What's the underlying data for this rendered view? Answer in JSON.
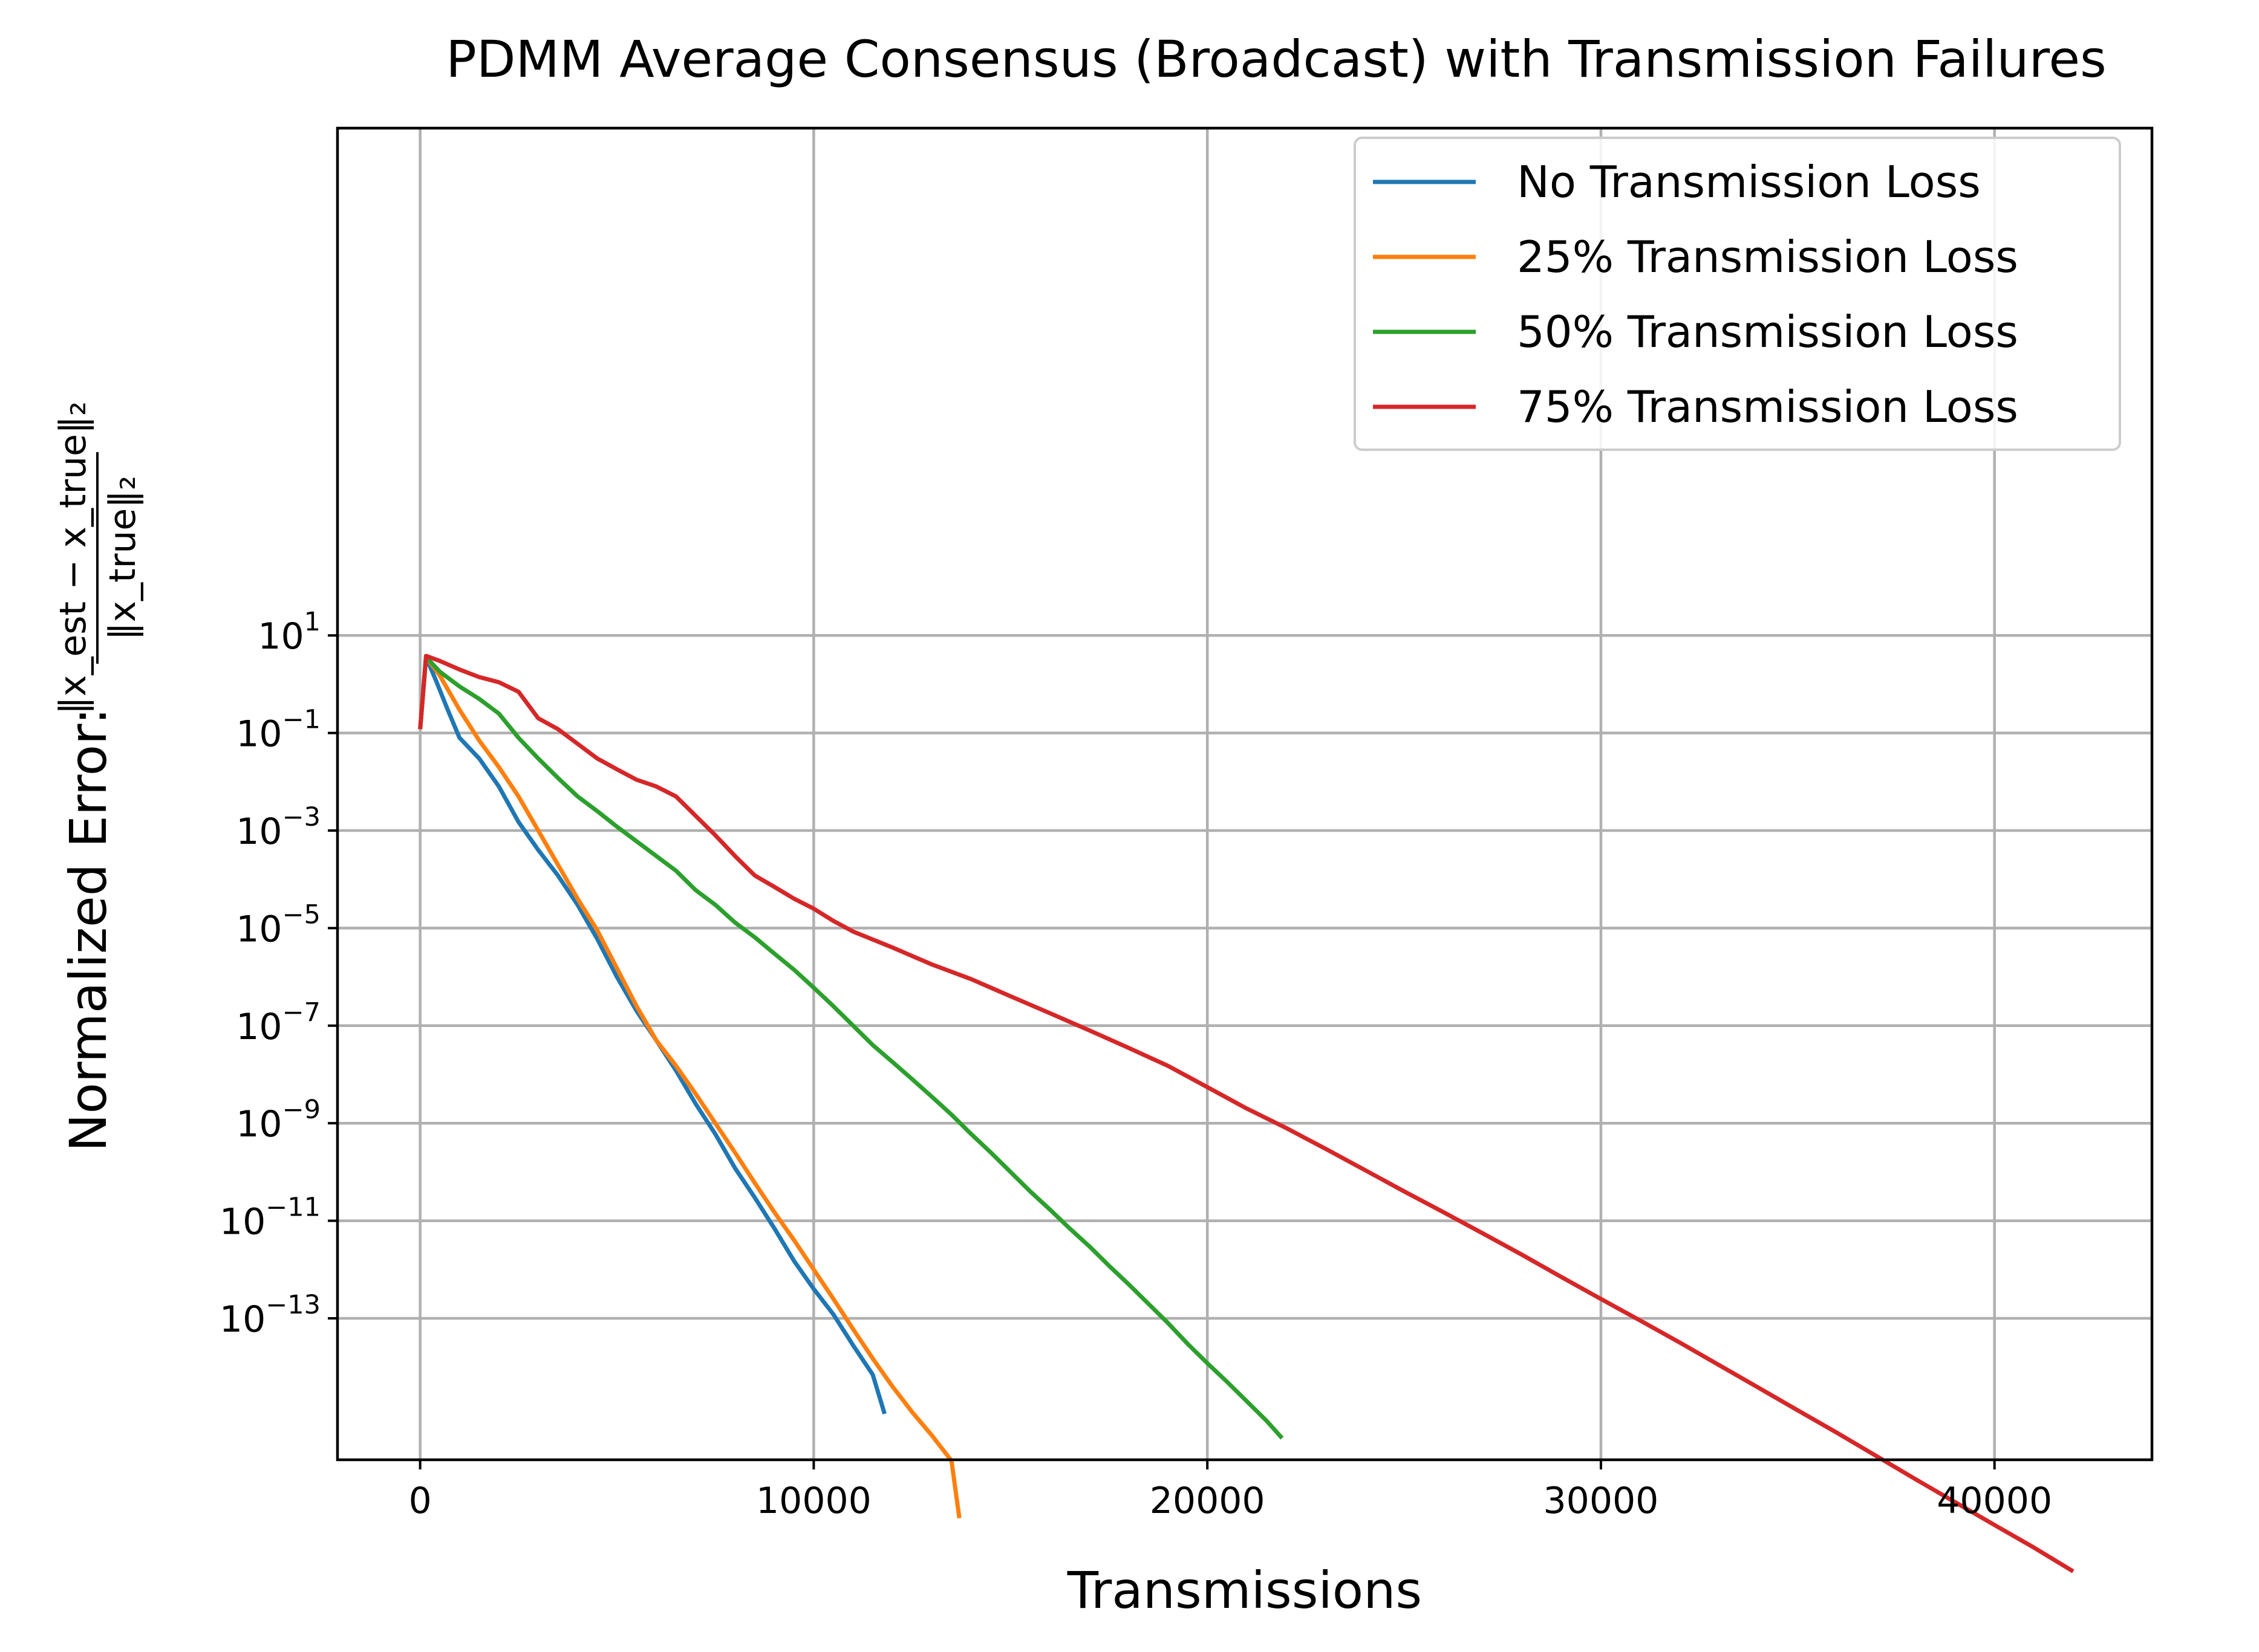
{
  "chart_data": {
    "type": "line",
    "title": "PDMM Average Consensus (Broadcast) with Transmission Failures",
    "xlabel": "Transmissions",
    "ylabel_prefix": "Normalized Error:",
    "ylabel_fraction": {
      "numerator": "‖x_est − x_true‖₂",
      "denominator": "‖x_true‖₂"
    },
    "yscale": "log",
    "xlim": [
      -2100,
      44000
    ],
    "ylim_exponent": [
      -15.9,
      11.4
    ],
    "x_ticks": [
      0,
      10000,
      20000,
      30000,
      40000
    ],
    "x_tick_labels": [
      "0",
      "10000",
      "20000",
      "30000",
      "40000"
    ],
    "y_ticks_exponent": [
      1,
      -1,
      -3,
      -5,
      -7,
      -9,
      -11,
      -13
    ],
    "y_tick_base": "10",
    "y_tick_exponents_text": [
      "1",
      "−1",
      "−3",
      "−5",
      "−7",
      "−9",
      "−11",
      "−13"
    ],
    "grid": true,
    "legend_position": "upper right",
    "series": [
      {
        "name": "No Transmission Loss",
        "color": "#1f77b4",
        "points": [
          [
            0,
            0.12
          ],
          [
            150,
            3.6
          ],
          [
            400,
            1.2
          ],
          [
            700,
            0.3
          ],
          [
            1000,
            0.08
          ],
          [
            1500,
            0.03
          ],
          [
            2000,
            0.008
          ],
          [
            2500,
            0.0015
          ],
          [
            3000,
            0.0004
          ],
          [
            3500,
            0.00012
          ],
          [
            4000,
            3e-05
          ],
          [
            4500,
            6e-06
          ],
          [
            5000,
            1e-06
          ],
          [
            5500,
            2e-07
          ],
          [
            6000,
            5e-08
          ],
          [
            6500,
            1.2e-08
          ],
          [
            7000,
            2.5e-09
          ],
          [
            7500,
            6e-10
          ],
          [
            8000,
            1.2e-10
          ],
          [
            8500,
            3e-11
          ],
          [
            9000,
            7e-12
          ],
          [
            9500,
            1.5e-12
          ],
          [
            10000,
            4e-13
          ],
          [
            10500,
            1.2e-13
          ],
          [
            11000,
            2.8e-14
          ],
          [
            11500,
            7e-15
          ],
          [
            11800,
            1.1e-15
          ]
        ]
      },
      {
        "name": "25% Transmission Loss",
        "color": "#ff7f0e",
        "points": [
          [
            0,
            0.12
          ],
          [
            150,
            3.6
          ],
          [
            500,
            1.5
          ],
          [
            1000,
            0.3
          ],
          [
            1500,
            0.07
          ],
          [
            2000,
            0.02
          ],
          [
            2500,
            0.005
          ],
          [
            3000,
            0.001
          ],
          [
            3500,
            0.0002
          ],
          [
            4000,
            4e-05
          ],
          [
            4500,
            9e-06
          ],
          [
            5000,
            1.5e-06
          ],
          [
            5500,
            2.5e-07
          ],
          [
            6000,
            5e-08
          ],
          [
            6500,
            1.5e-08
          ],
          [
            7000,
            4e-09
          ],
          [
            7500,
            1e-09
          ],
          [
            8000,
            2.5e-10
          ],
          [
            8500,
            6e-11
          ],
          [
            9000,
            1.5e-11
          ],
          [
            9500,
            4e-12
          ],
          [
            10000,
            1e-12
          ],
          [
            10500,
            2.5e-13
          ],
          [
            11000,
            6e-14
          ],
          [
            11500,
            1.5e-14
          ],
          [
            12000,
            4e-15
          ],
          [
            12500,
            1.2e-15
          ],
          [
            13000,
            4e-16
          ],
          [
            13500,
            1.2e-16
          ],
          [
            13700,
            8e-18
          ]
        ]
      },
      {
        "name": "50% Transmission Loss",
        "color": "#2ca02c",
        "points": [
          [
            0,
            0.12
          ],
          [
            150,
            3.6
          ],
          [
            500,
            1.8
          ],
          [
            1000,
            0.9
          ],
          [
            1500,
            0.5
          ],
          [
            2000,
            0.25
          ],
          [
            2500,
            0.08
          ],
          [
            3000,
            0.03
          ],
          [
            3500,
            0.012
          ],
          [
            4000,
            0.005
          ],
          [
            4500,
            0.0025
          ],
          [
            5000,
            0.0012
          ],
          [
            5500,
            0.0006
          ],
          [
            6000,
            0.0003
          ],
          [
            6500,
            0.00015
          ],
          [
            7000,
            6e-05
          ],
          [
            7500,
            3e-05
          ],
          [
            8000,
            1.3e-05
          ],
          [
            8500,
            6.5e-06
          ],
          [
            9000,
            3e-06
          ],
          [
            9500,
            1.4e-06
          ],
          [
            10000,
            6e-07
          ],
          [
            10500,
            2.5e-07
          ],
          [
            11000,
            1e-07
          ],
          [
            11500,
            4e-08
          ],
          [
            12000,
            1.8e-08
          ],
          [
            12500,
            8e-09
          ],
          [
            13000,
            3.5e-09
          ],
          [
            13500,
            1.5e-09
          ],
          [
            14000,
            6e-10
          ],
          [
            14500,
            2.5e-10
          ],
          [
            15000,
            1e-10
          ],
          [
            15500,
            4e-11
          ],
          [
            16000,
            1.7e-11
          ],
          [
            16500,
            7e-12
          ],
          [
            17000,
            3e-12
          ],
          [
            17500,
            1.2e-12
          ],
          [
            18000,
            5e-13
          ],
          [
            18500,
            2e-13
          ],
          [
            19000,
            8e-14
          ],
          [
            19500,
            3e-14
          ],
          [
            20000,
            1.2e-14
          ],
          [
            20500,
            5e-15
          ],
          [
            21000,
            2e-15
          ],
          [
            21500,
            8e-16
          ],
          [
            21900,
            3.5e-16
          ]
        ]
      },
      {
        "name": "75% Transmission Loss",
        "color": "#d62728",
        "points": [
          [
            0,
            0.12
          ],
          [
            150,
            3.8
          ],
          [
            500,
            3.0
          ],
          [
            1000,
            2.0
          ],
          [
            1500,
            1.4
          ],
          [
            2000,
            1.1
          ],
          [
            2500,
            0.7
          ],
          [
            3000,
            0.2
          ],
          [
            3500,
            0.12
          ],
          [
            4000,
            0.06
          ],
          [
            4500,
            0.03
          ],
          [
            5000,
            0.018
          ],
          [
            5500,
            0.011
          ],
          [
            6000,
            0.008
          ],
          [
            6500,
            0.005
          ],
          [
            7000,
            0.002
          ],
          [
            7500,
            0.0008
          ],
          [
            8000,
            0.0003
          ],
          [
            8500,
            0.00012
          ],
          [
            9000,
            7e-05
          ],
          [
            9500,
            4e-05
          ],
          [
            10000,
            2.5e-05
          ],
          [
            10500,
            1.4e-05
          ],
          [
            11000,
            8.5e-06
          ],
          [
            12000,
            4e-06
          ],
          [
            13000,
            1.8e-06
          ],
          [
            14000,
            9e-07
          ],
          [
            15000,
            4e-07
          ],
          [
            16000,
            1.8e-07
          ],
          [
            17000,
            8e-08
          ],
          [
            18000,
            3.5e-08
          ],
          [
            19000,
            1.5e-08
          ],
          [
            20000,
            5.5e-09
          ],
          [
            21000,
            2e-09
          ],
          [
            22000,
            8e-10
          ],
          [
            23000,
            3e-10
          ],
          [
            24000,
            1.1e-10
          ],
          [
            25000,
            4e-11
          ],
          [
            26000,
            1.5e-11
          ],
          [
            27000,
            5.5e-12
          ],
          [
            28000,
            2e-12
          ],
          [
            29000,
            7e-13
          ],
          [
            30000,
            2.5e-13
          ],
          [
            31000,
            9e-14
          ],
          [
            32000,
            3.2e-14
          ],
          [
            33000,
            1.1e-14
          ],
          [
            34000,
            3.8e-15
          ],
          [
            35000,
            1.3e-15
          ],
          [
            36000,
            4.5e-16
          ],
          [
            37000,
            1.5e-16
          ],
          [
            38000,
            5e-17
          ],
          [
            39000,
            1.7e-17
          ],
          [
            40000,
            5.8e-18
          ],
          [
            41000,
            2e-18
          ],
          [
            42000,
            6.5e-19
          ]
        ]
      }
    ]
  }
}
